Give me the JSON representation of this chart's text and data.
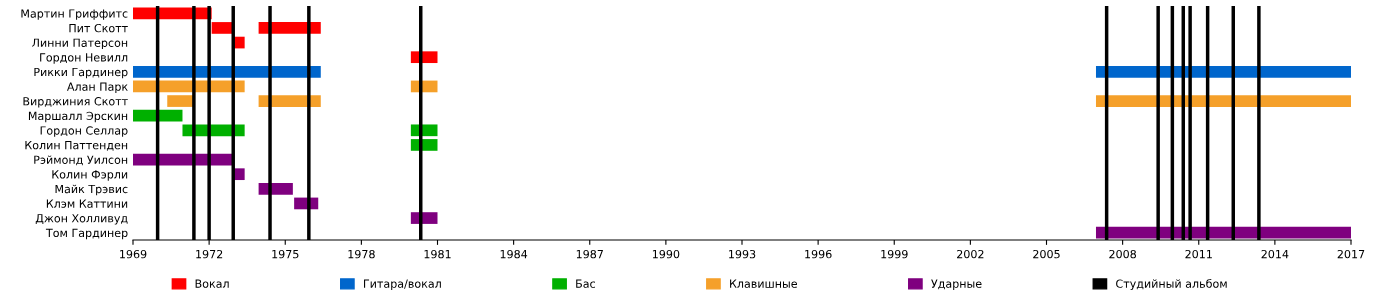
{
  "chart_data": {
    "type": "bar",
    "orientation": "horizontal",
    "legend": "bottom",
    "grid": false,
    "categories": [
      "Мартин Гриффитс",
      "Пит Скотт",
      "Линни Патерсон",
      "Гордон Невилл",
      "Рикки Гардинер",
      "Алан Парк",
      "Вирджиния Скотт",
      "Маршалл Эрскин",
      "Гордон Селлар",
      "Колин Паттенден",
      "Рэймонд Уилсон",
      "Колин Фэрли",
      "Майк Трэвис",
      "Клэм Каттини",
      "Джон Холливуд",
      "Том Гардинер"
    ],
    "xlim": [
      1969,
      2017
    ],
    "xticks": [
      1969,
      1972,
      1975,
      1978,
      1981,
      1984,
      1987,
      1990,
      1993,
      1996,
      1999,
      2002,
      2005,
      2008,
      2011,
      2014,
      2017
    ],
    "series": [
      {
        "name": "Вокал",
        "color": "#ff0000",
        "base": [
          1969,
          1972.1,
          1972.95,
          1979.95,
          null,
          null,
          null,
          null,
          null,
          null,
          null,
          null,
          null,
          null,
          null,
          null
        ],
        "values": [
          3.1,
          0.85,
          0.45,
          1.05,
          null,
          null,
          null,
          null,
          null,
          null,
          null,
          null,
          null,
          null,
          null,
          null
        ]
      },
      {
        "color": "#ff0000",
        "base": [
          null,
          1973.95,
          null,
          null,
          null,
          null,
          null,
          null,
          null,
          null,
          null,
          null,
          null,
          null,
          null,
          null
        ],
        "values": [
          null,
          2.45,
          null,
          null,
          null,
          null,
          null,
          null,
          null,
          null,
          null,
          null,
          null,
          null,
          null,
          null
        ]
      },
      {
        "name": "Гитара/вокал",
        "color": "#0066cc",
        "base": [
          null,
          null,
          null,
          null,
          1969,
          null,
          null,
          null,
          null,
          null,
          null,
          null,
          null,
          null,
          null,
          null
        ],
        "values": [
          null,
          null,
          null,
          null,
          7.4,
          null,
          null,
          null,
          null,
          null,
          null,
          null,
          null,
          null,
          null,
          null
        ]
      },
      {
        "color": "#0066cc",
        "base": [
          null,
          null,
          null,
          null,
          2006.95,
          null,
          null,
          null,
          null,
          null,
          null,
          null,
          null,
          null,
          null,
          null
        ],
        "values": [
          null,
          null,
          null,
          null,
          10.05,
          null,
          null,
          null,
          null,
          null,
          null,
          null,
          null,
          null,
          null,
          null
        ]
      },
      {
        "name": "Бас",
        "color": "#00b000",
        "base": [
          null,
          null,
          null,
          null,
          null,
          null,
          null,
          1969,
          1970.95,
          1979.95,
          null,
          null,
          null,
          null,
          null,
          null
        ],
        "values": [
          null,
          null,
          null,
          null,
          null,
          null,
          null,
          1.95,
          2.45,
          1.05,
          null,
          null,
          null,
          null,
          null,
          null
        ]
      },
      {
        "color": "#00b000",
        "base": [
          null,
          null,
          null,
          null,
          null,
          null,
          null,
          null,
          1979.95,
          null,
          null,
          null,
          null,
          null,
          null,
          null
        ],
        "values": [
          null,
          null,
          null,
          null,
          null,
          null,
          null,
          null,
          1.05,
          null,
          null,
          null,
          null,
          null,
          null,
          null
        ]
      },
      {
        "name": "Клавишные",
        "color": "#f5a02a",
        "base": [
          null,
          null,
          null,
          null,
          null,
          1969,
          1970.35,
          null,
          null,
          null,
          null,
          null,
          null,
          null,
          null,
          null
        ],
        "values": [
          null,
          null,
          null,
          null,
          null,
          4.4,
          1.05,
          null,
          null,
          null,
          null,
          null,
          null,
          null,
          null,
          null
        ]
      },
      {
        "color": "#f5a02a",
        "base": [
          null,
          null,
          null,
          null,
          null,
          1979.95,
          1973.95,
          null,
          null,
          null,
          null,
          null,
          null,
          null,
          null,
          null
        ],
        "values": [
          null,
          null,
          null,
          null,
          null,
          1.05,
          2.45,
          null,
          null,
          null,
          null,
          null,
          null,
          null,
          null,
          null
        ]
      },
      {
        "color": "#f5a02a",
        "base": [
          null,
          null,
          null,
          null,
          null,
          null,
          2006.95,
          null,
          null,
          null,
          null,
          null,
          null,
          null,
          null,
          null
        ],
        "values": [
          null,
          null,
          null,
          null,
          null,
          null,
          10.05,
          null,
          null,
          null,
          null,
          null,
          null,
          null,
          null,
          null
        ]
      },
      {
        "name": "Ударные",
        "color": "#7f007f",
        "base": [
          null,
          null,
          null,
          null,
          null,
          null,
          null,
          null,
          null,
          null,
          1969,
          1972.95,
          1973.95,
          1975.35,
          1979.95,
          2006.95
        ],
        "values": [
          null,
          null,
          null,
          null,
          null,
          null,
          null,
          null,
          null,
          null,
          3.95,
          0.45,
          1.35,
          0.95,
          1.05,
          10.05
        ]
      }
    ],
    "ref_lines": [
      {
        "axis": "x",
        "value": 1969.97,
        "color": "#000000",
        "label": "Студийный альбом"
      },
      {
        "axis": "x",
        "value": 1971.4,
        "color": "#000000"
      },
      {
        "axis": "x",
        "value": 1972.0,
        "color": "#000000"
      },
      {
        "axis": "x",
        "value": 1972.95,
        "color": "#000000"
      },
      {
        "axis": "x",
        "value": 1974.4,
        "color": "#000000"
      },
      {
        "axis": "x",
        "value": 1975.93,
        "color": "#000000"
      },
      {
        "axis": "x",
        "value": 1980.34,
        "color": "#000000"
      },
      {
        "axis": "x",
        "value": 2007.37,
        "color": "#000000"
      },
      {
        "axis": "x",
        "value": 2009.4,
        "color": "#000000"
      },
      {
        "axis": "x",
        "value": 2009.96,
        "color": "#000000"
      },
      {
        "axis": "x",
        "value": 2010.39,
        "color": "#000000"
      },
      {
        "axis": "x",
        "value": 2010.66,
        "color": "#000000"
      },
      {
        "axis": "x",
        "value": 2011.35,
        "color": "#000000"
      },
      {
        "axis": "x",
        "value": 2012.36,
        "color": "#000000"
      },
      {
        "axis": "x",
        "value": 2013.37,
        "color": "#000000"
      }
    ]
  }
}
